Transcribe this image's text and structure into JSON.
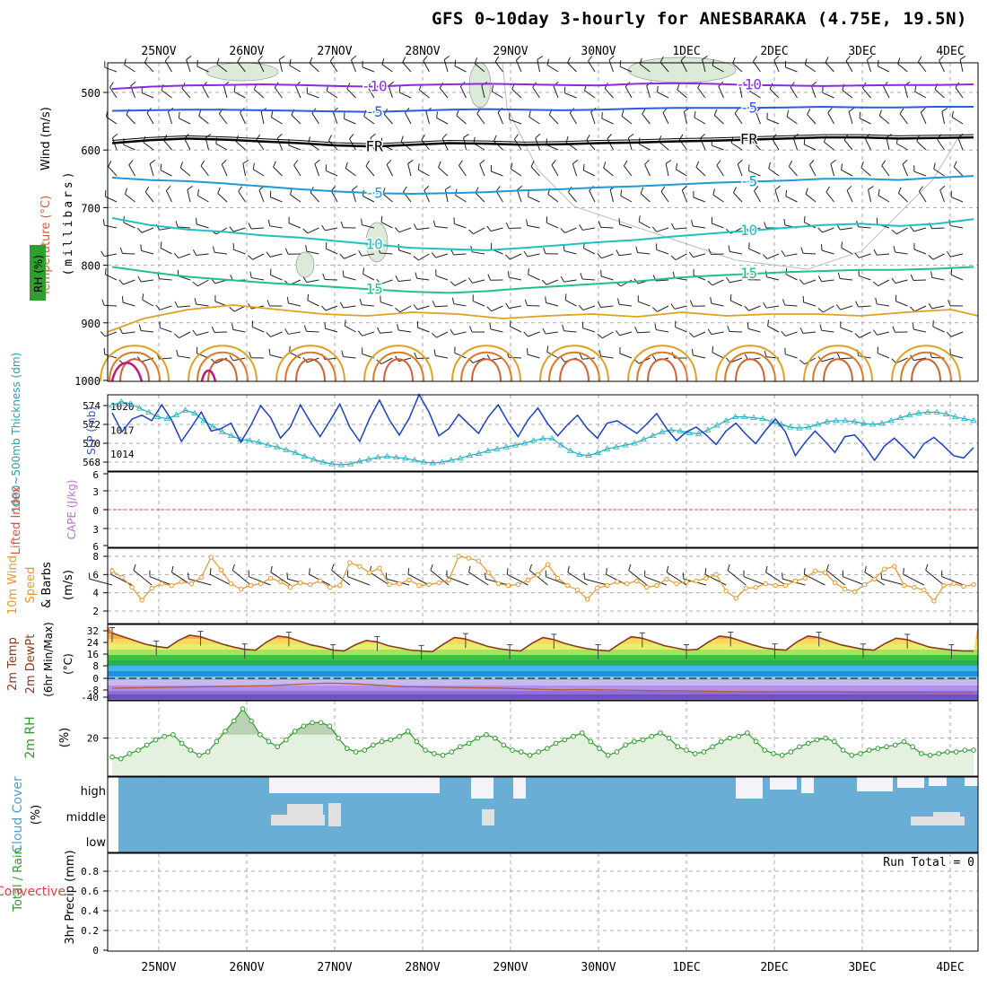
{
  "title": "GFS 0~10day 3-hourly for ANESBARAKA (4.75E, 19.5N)",
  "dates": [
    "25NOV",
    "26NOV",
    "27NOV",
    "28NOV",
    "29NOV",
    "30NOV",
    "1DEC",
    "2DEC",
    "3DEC",
    "4DEC"
  ],
  "chart_data": [
    {
      "type": "line",
      "panel": "upper_air",
      "ylabel_parts": [
        "Wind (m/s)",
        "Temperature (°C)",
        "RH (%)",
        "(millibars)"
      ],
      "yticks": [
        500,
        600,
        700,
        800,
        900,
        1000
      ],
      "ylim": [
        1000,
        450
      ],
      "isotherms": [
        {
          "value": -10,
          "label": "-10",
          "color": "#8a2be2",
          "p": [
            494,
            490,
            488,
            487,
            486,
            487,
            489,
            490,
            487,
            486,
            485,
            486,
            487,
            488,
            485,
            484,
            485,
            487,
            488,
            489,
            488,
            487,
            487,
            486
          ]
        },
        {
          "value": -5,
          "label": "-5",
          "color": "#2c5ae0",
          "p": [
            532,
            531,
            530,
            530,
            531,
            532,
            533,
            534,
            532,
            530,
            529,
            530,
            531,
            530,
            528,
            527,
            527,
            527,
            526,
            525,
            526,
            526,
            525,
            525
          ]
        },
        {
          "value": 0,
          "label": "FR",
          "color": "#000000",
          "p": [
            588,
            583,
            580,
            582,
            585,
            588,
            592,
            594,
            591,
            588,
            589,
            591,
            590,
            588,
            587,
            585,
            584,
            582,
            580,
            578,
            578,
            580,
            579,
            578
          ]
        },
        {
          "value": -5,
          "label": "-5",
          "color": "#1e9ad6",
          "p": [
            648,
            652,
            654,
            658,
            663,
            668,
            672,
            675,
            676,
            675,
            673,
            670,
            668,
            665,
            663,
            660,
            657,
            655,
            653,
            650,
            650,
            652,
            648,
            645
          ]
        },
        {
          "value": 10,
          "label": "10",
          "color": "#20c0c0",
          "p": [
            718,
            730,
            738,
            742,
            748,
            752,
            758,
            764,
            770,
            772,
            774,
            770,
            765,
            760,
            756,
            750,
            745,
            740,
            735,
            730,
            728,
            732,
            728,
            720
          ]
        },
        {
          "value": 15,
          "label": "15",
          "color": "#20c090",
          "p": [
            803,
            812,
            820,
            825,
            830,
            834,
            838,
            842,
            846,
            848,
            845,
            840,
            836,
            832,
            828,
            822,
            818,
            815,
            812,
            810,
            808,
            808,
            806,
            803
          ]
        }
      ]
    },
    {
      "type": "line",
      "panel": "thickness_slp",
      "ylabel_parts": [
        "1000~500mb Thickness (dm)",
        "SLP (mb)"
      ],
      "y_left_ticks": [
        568,
        570,
        572,
        574
      ],
      "y_right_ticks": [
        1014,
        1017,
        1020
      ],
      "series": [
        {
          "name": "Thickness",
          "axis": "left",
          "color": "#20b0c0",
          "values": [
            574.0,
            574.4,
            574.2,
            573.7,
            573.3,
            572.8,
            572.6,
            573.0,
            573.5,
            573.2,
            572.4,
            571.8,
            571.2,
            570.8,
            570.4,
            570.3,
            570.1,
            569.8,
            569.6,
            569.3,
            569.0,
            568.6,
            568.3,
            568.0,
            567.8,
            567.7,
            567.8,
            568.1,
            568.3,
            568.5,
            568.6,
            568.5,
            568.4,
            568.2,
            568.0,
            567.9,
            568.0,
            568.2,
            568.4,
            568.7,
            568.9,
            569.2,
            569.4,
            569.6,
            569.8,
            570.0,
            570.3,
            570.5,
            570.5,
            569.8,
            569.2,
            568.8,
            568.7,
            569.0,
            569.4,
            569.6,
            569.8,
            570.0,
            570.4,
            570.8,
            571.2,
            571.4,
            571.3,
            571.1,
            571.0,
            571.4,
            571.9,
            572.4,
            572.8,
            572.8,
            572.7,
            572.6,
            572.3,
            572.0,
            571.7,
            571.6,
            571.7,
            572.0,
            572.3,
            572.4,
            572.4,
            572.3,
            572.1,
            572.0,
            572.1,
            572.4,
            572.7,
            573.0,
            573.2,
            573.3,
            573.3,
            573.1,
            572.8,
            572.6,
            572.4
          ]
        },
        {
          "name": "SLP",
          "axis": "right",
          "color": "#1840c8",
          "values": [
            1019.2,
            1016.8,
            1018.4,
            1018.9,
            1018.2,
            1020.2,
            1018.3,
            1015.6,
            1017.4,
            1019.3,
            1016.9,
            1017.2,
            1017.9,
            1015.5,
            1017.6,
            1020.1,
            1018.6,
            1016.0,
            1017.4,
            1020.2,
            1018.1,
            1016.2,
            1018.2,
            1020.3,
            1017.4,
            1015.6,
            1018.5,
            1020.8,
            1018.3,
            1016.4,
            1018.5,
            1021.5,
            1019.3,
            1016.3,
            1017.2,
            1019.0,
            1017.8,
            1016.6,
            1018.7,
            1020.2,
            1018.0,
            1016.2,
            1018.3,
            1019.8,
            1017.8,
            1016.3,
            1017.7,
            1018.9,
            1017.2,
            1016.0,
            1017.9,
            1018.2,
            1017.4,
            1016.6,
            1017.8,
            1019.1,
            1017.2,
            1015.7,
            1016.8,
            1017.4,
            1016.4,
            1015.2,
            1016.9,
            1017.9,
            1016.5,
            1015.3,
            1017.0,
            1018.4,
            1016.8,
            1013.8,
            1015.5,
            1016.9,
            1015.6,
            1014.2,
            1016.2,
            1016.4,
            1015.0,
            1013.2,
            1015.0,
            1016.0,
            1014.8,
            1013.5,
            1015.3,
            1016.1,
            1015.0,
            1013.8,
            1013.5,
            1014.8
          ]
        }
      ]
    },
    {
      "type": "line",
      "panel": "instability",
      "ylabel_parts": [
        "Lifted Index",
        "CAPE (J/kg)"
      ],
      "yticks": [
        "6",
        "3",
        "0",
        "3",
        "6"
      ],
      "ylim": [
        6,
        -6
      ],
      "series": [
        {
          "name": "Lifted Index",
          "color": "#e04040",
          "values": [
            0,
            0
          ]
        }
      ]
    },
    {
      "type": "line",
      "panel": "wind10m",
      "ylabel_parts": [
        "10m Wind",
        "Speed",
        "& Barbs",
        "(m/s)"
      ],
      "yticks": [
        2,
        4,
        6,
        8
      ],
      "ylim": [
        1,
        8.5
      ],
      "series": [
        {
          "name": "10m Wind Speed",
          "color": "#e8962a",
          "values": [
            6.4,
            5.7,
            4.6,
            3.2,
            4.5,
            5.0,
            4.8,
            5.2,
            5.0,
            5.7,
            7.9,
            6.5,
            5.0,
            4.4,
            4.8,
            5.0,
            5.6,
            5.2,
            4.6,
            5.1,
            4.9,
            5.3,
            4.6,
            4.8,
            7.3,
            6.9,
            6.2,
            6.7,
            4.9,
            5.0,
            5.4,
            4.8,
            4.9,
            5.1,
            5.4,
            8.0,
            7.8,
            7.5,
            6.2,
            5.0,
            4.8,
            4.9,
            5.4,
            6.0,
            7.1,
            5.6,
            4.8,
            4.3,
            3.3,
            4.5,
            4.8,
            5.2,
            5.0,
            5.3,
            4.6,
            4.8,
            5.5,
            5.0,
            5.2,
            5.3,
            5.6,
            6.0,
            4.2,
            3.4,
            4.5,
            4.6,
            5.0,
            4.8,
            4.8,
            5.3,
            5.6,
            6.4,
            6.2,
            5.1,
            4.4,
            4.1,
            4.9,
            5.5,
            6.6,
            6.9,
            4.8,
            4.6,
            4.3,
            3.1,
            4.8,
            5.0,
            4.7,
            4.9
          ]
        }
      ]
    },
    {
      "type": "area",
      "panel": "temp2m",
      "ylabel_parts": [
        "2m Temp",
        "2m DewPt",
        "(6hr Min/Max)",
        "(°C)"
      ],
      "yticks": [
        32,
        24,
        16,
        8,
        0,
        -8,
        -40
      ],
      "series": [
        {
          "name": "2m Temp",
          "color": "#8b3a1a",
          "values": [
            30.5,
            28.0,
            25.5,
            23.0,
            21.5,
            20.5,
            25.5,
            29.0,
            28.0,
            25.5,
            23.0,
            21.0,
            19.5,
            19.0,
            24.5,
            28.5,
            27.5,
            25.0,
            22.5,
            21.0,
            19.0,
            18.5,
            22.5,
            25.5,
            24.5,
            22.0,
            20.5,
            19.0,
            18.5,
            18.0,
            23.0,
            27.5,
            26.5,
            24.0,
            21.5,
            20.0,
            19.0,
            18.5,
            23.5,
            27.5,
            26.0,
            23.5,
            21.5,
            20.0,
            19.0,
            18.5,
            23.5,
            28.0,
            27.0,
            24.5,
            22.0,
            20.5,
            19.0,
            19.5,
            24.5,
            28.5,
            27.5,
            25.0,
            22.5,
            20.5,
            19.5,
            19.0,
            24.5,
            28.5,
            27.5,
            25.0,
            22.5,
            21.0,
            19.5,
            19.0,
            23.5,
            27.0,
            26.0,
            23.5,
            21.0,
            20.0,
            19.0,
            18.5,
            18.5
          ]
        },
        {
          "name": "2m DewPt",
          "color": "#b06040",
          "values": [
            -10.0,
            -9.5,
            -9.0,
            -8.5,
            -8.0,
            -7.5,
            -7.0,
            -6.5,
            -6.0,
            -4.5,
            -3.0,
            -2.0,
            -2.5,
            -4.0,
            -6.0,
            -7.5,
            -8.0,
            -8.5,
            -9.0,
            -9.5,
            -10.0,
            -11.0,
            -12.0,
            -12.5,
            -12.0,
            -12.5,
            -13.0,
            -13.5,
            -14.0,
            -14.0,
            -14.5,
            -15.0,
            -15.5,
            -15.5,
            -16.0,
            -16.0,
            -16.0,
            -16.0,
            -16.5,
            -16.5,
            -16.5,
            -16.5,
            -17.0,
            -17.0,
            -17.0
          ]
        }
      ]
    },
    {
      "type": "area",
      "panel": "rh2m",
      "ylabel_parts": [
        "2m RH",
        "(%)"
      ],
      "yticks": [
        20
      ],
      "ylim": [
        0,
        40
      ],
      "series": [
        {
          "name": "2m RH",
          "color": "#2e9a2e",
          "values": [
            9,
            8,
            11,
            13,
            16,
            19,
            21,
            22,
            17,
            13,
            10,
            12,
            18,
            24,
            30,
            37,
            30,
            22,
            18,
            15,
            19,
            24,
            27,
            29,
            29,
            27,
            20,
            14,
            12,
            13,
            16,
            18,
            19,
            21,
            24,
            18,
            13,
            11,
            10,
            12,
            15,
            17,
            20,
            22,
            20,
            16,
            13,
            12,
            10,
            12,
            14,
            17,
            19,
            21,
            23,
            18,
            14,
            10,
            12,
            16,
            18,
            19,
            21,
            23,
            20,
            15,
            13,
            11,
            12,
            15,
            18,
            20,
            21,
            23,
            18,
            13,
            11,
            10,
            12,
            15,
            17,
            19,
            20,
            18,
            13,
            10,
            11,
            13,
            14,
            15,
            16,
            18,
            15,
            11,
            10,
            11,
            12,
            12,
            13,
            13
          ]
        }
      ]
    },
    {
      "type": "bar",
      "panel": "cloud_cover",
      "ylabel_parts": [
        "Cloud Cover",
        "(%)"
      ],
      "levels": [
        "high",
        "middle",
        "low"
      ]
    },
    {
      "type": "bar",
      "panel": "precip",
      "ylabel_parts": [
        "Total / Rain",
        "Convective",
        "3hr Precip (mm)"
      ],
      "yticks": [
        "0",
        "0.2",
        "0.4",
        "0.6",
        "0.8"
      ],
      "ylim": [
        0,
        0.9
      ],
      "annotation": "Run Total = 0",
      "series": [
        {
          "name": "Total / Rain",
          "color": "#2e9a2e",
          "values": []
        },
        {
          "name": "Convective",
          "color": "#e04040",
          "values": []
        }
      ]
    }
  ]
}
